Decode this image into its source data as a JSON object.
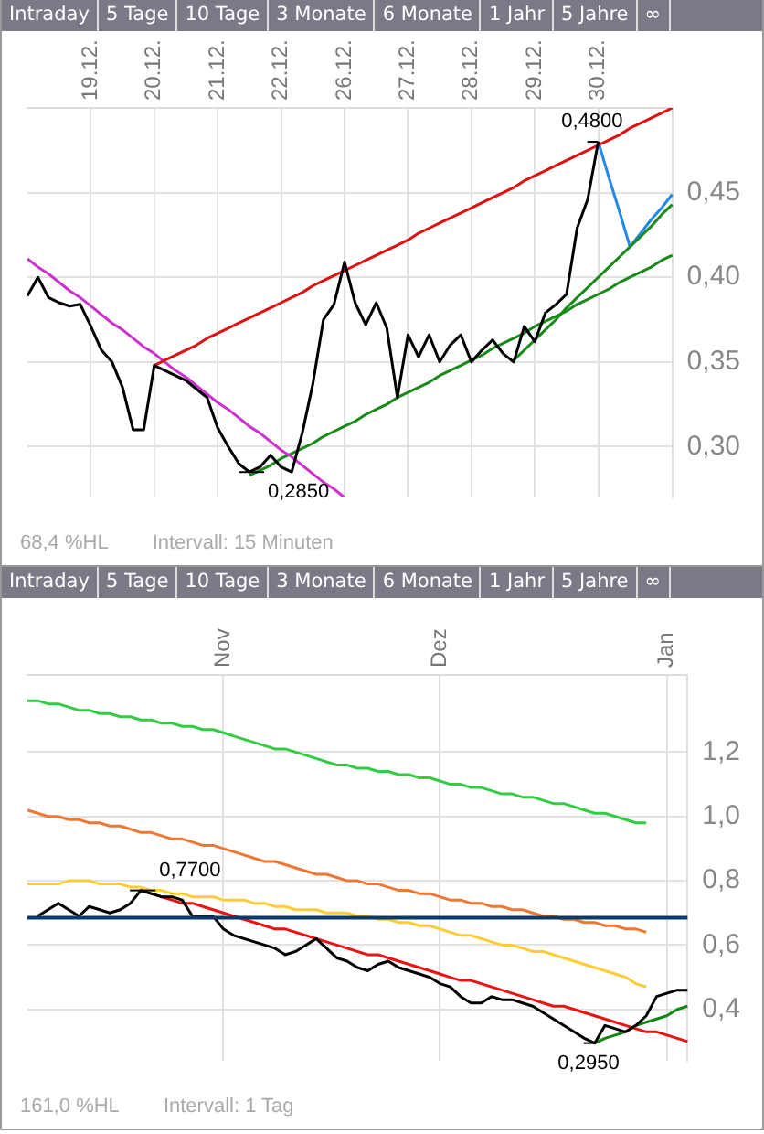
{
  "chart_data": [
    {
      "type": "line",
      "grid": true,
      "legend": false,
      "categories": [
        null,
        null,
        null,
        null,
        null,
        null,
        "19.12.",
        null,
        null,
        null,
        null,
        null,
        "20.12.",
        null,
        null,
        null,
        null,
        null,
        "21.12.",
        null,
        null,
        null,
        null,
        null,
        "22.12.",
        null,
        null,
        null,
        null,
        null,
        "26.12.",
        null,
        null,
        null,
        null,
        null,
        "27.12.",
        null,
        null,
        null,
        null,
        null,
        "28.12.",
        null,
        null,
        null,
        null,
        null,
        "29.12.",
        null,
        null,
        null,
        null,
        null,
        "30.12.",
        null,
        null,
        null,
        null,
        null,
        null,
        null
      ],
      "ylim": [
        0.27,
        0.5
      ],
      "yticks": [
        {
          "value": 0.3,
          "label": "0,30"
        },
        {
          "value": 0.35,
          "label": "0,35"
        },
        {
          "value": 0.4,
          "label": "0,40"
        },
        {
          "value": 0.45,
          "label": "0,45"
        }
      ],
      "series": [
        {
          "color": "#000000",
          "values": [
            0.389,
            0.4,
            0.388,
            0.385,
            0.383,
            0.384,
            0.371,
            0.357,
            0.35,
            0.335,
            0.31,
            0.31,
            0.348,
            0.345,
            0.342,
            0.339,
            0.334,
            0.329,
            0.311,
            0.3,
            0.29,
            0.285,
            0.288,
            0.295,
            0.288,
            0.285,
            0.308,
            0.337,
            0.375,
            0.384,
            0.409,
            0.385,
            0.372,
            0.385,
            0.37,
            0.329,
            0.366,
            0.353,
            0.366,
            0.35,
            0.36,
            0.366,
            0.35,
            0.357,
            0.363,
            0.355,
            0.35,
            0.371,
            0.362,
            0.379,
            0.384,
            0.39,
            0.429,
            0.446,
            0.48,
            null,
            null,
            null,
            null,
            null,
            null,
            null
          ]
        },
        {
          "color": "#dd1111",
          "values": [
            null,
            null,
            null,
            null,
            null,
            null,
            null,
            null,
            null,
            null,
            null,
            null,
            0.348,
            0.351,
            0.354,
            0.357,
            0.36,
            0.364,
            0.367,
            0.37,
            0.373,
            0.376,
            0.379,
            0.382,
            0.385,
            0.388,
            0.391,
            0.395,
            0.398,
            0.401,
            0.404,
            0.407,
            0.41,
            0.413,
            0.416,
            0.419,
            0.422,
            0.426,
            0.429,
            0.432,
            0.435,
            0.438,
            0.441,
            0.444,
            0.447,
            0.45,
            0.453,
            0.457,
            0.46,
            0.463,
            0.466,
            0.469,
            0.472,
            0.475,
            0.478,
            0.481,
            0.484,
            0.488,
            0.491,
            0.494,
            0.497,
            0.5
          ]
        },
        {
          "color": "#cc33cc",
          "values": [
            0.411,
            0.406,
            0.402,
            0.397,
            0.392,
            0.388,
            0.383,
            0.378,
            0.373,
            0.369,
            0.364,
            0.359,
            0.355,
            0.35,
            0.345,
            0.341,
            0.336,
            0.331,
            0.326,
            0.322,
            0.317,
            0.312,
            0.308,
            0.303,
            0.298,
            0.294,
            0.289,
            0.284,
            0.279,
            0.275,
            0.27,
            null,
            null,
            null,
            null,
            null,
            null,
            null,
            null,
            null,
            null,
            null,
            null,
            null,
            null,
            null,
            null,
            null,
            null,
            null,
            null,
            null,
            null,
            null,
            null,
            null,
            null,
            null,
            null,
            null,
            null,
            null
          ]
        },
        {
          "color": "#1a8a1a",
          "values": [
            null,
            null,
            null,
            null,
            null,
            null,
            null,
            null,
            null,
            null,
            null,
            null,
            null,
            null,
            null,
            null,
            null,
            null,
            null,
            null,
            null,
            0.283,
            0.286,
            0.289,
            0.293,
            0.296,
            0.299,
            0.302,
            0.306,
            0.309,
            0.312,
            0.315,
            0.319,
            0.322,
            0.325,
            0.329,
            0.332,
            0.335,
            0.338,
            0.342,
            0.345,
            0.348,
            0.351,
            0.354,
            0.358,
            0.361,
            0.364,
            0.367,
            0.371,
            0.374,
            0.377,
            0.38,
            0.384,
            0.387,
            0.39,
            0.393,
            0.397,
            0.4,
            0.403,
            0.406,
            0.41,
            0.413
          ]
        },
        {
          "color": "#1a8a1a",
          "values": [
            null,
            null,
            null,
            null,
            null,
            null,
            null,
            null,
            null,
            null,
            null,
            null,
            null,
            null,
            null,
            null,
            null,
            null,
            null,
            null,
            null,
            null,
            null,
            null,
            null,
            null,
            null,
            null,
            null,
            null,
            null,
            null,
            null,
            null,
            null,
            null,
            null,
            null,
            null,
            null,
            null,
            null,
            null,
            null,
            null,
            null,
            0.351,
            0.357,
            0.363,
            0.369,
            0.375,
            0.382,
            0.388,
            0.394,
            0.4,
            0.406,
            0.412,
            0.418,
            0.424,
            0.43,
            0.437,
            0.443
          ]
        },
        {
          "color": "#2288ee",
          "values": [
            null,
            null,
            null,
            null,
            null,
            null,
            null,
            null,
            null,
            null,
            null,
            null,
            null,
            null,
            null,
            null,
            null,
            null,
            null,
            null,
            null,
            null,
            null,
            null,
            null,
            null,
            null,
            null,
            null,
            null,
            null,
            null,
            null,
            null,
            null,
            null,
            null,
            null,
            null,
            null,
            null,
            null,
            null,
            null,
            null,
            null,
            null,
            null,
            null,
            null,
            null,
            null,
            null,
            null,
            0.48,
            0.459,
            0.439,
            0.418,
            0.426,
            0.434,
            0.441,
            0.449
          ]
        }
      ],
      "annotations": [
        "Intraday",
        "5 Tage",
        "10 Tage",
        "3 Monate",
        "6 Monate",
        "1 Jahr",
        "5 Jahre",
        "∞",
        {
          "text": "0,4800",
          "y": 0.48
        },
        {
          "text": "0,2850",
          "y": 0.285
        },
        "68,4 %HL",
        "Intervall: 15 Minuten"
      ]
    },
    {
      "type": "line",
      "grid": true,
      "legend": false,
      "categories": [
        null,
        null,
        null,
        null,
        null,
        null,
        null,
        null,
        null,
        null,
        null,
        null,
        null,
        null,
        null,
        null,
        null,
        null,
        null,
        "Nov",
        null,
        null,
        null,
        null,
        null,
        null,
        null,
        null,
        null,
        null,
        null,
        null,
        null,
        null,
        null,
        null,
        null,
        null,
        null,
        null,
        "Dez",
        null,
        null,
        null,
        null,
        null,
        null,
        null,
        null,
        null,
        null,
        null,
        null,
        null,
        null,
        null,
        null,
        null,
        null,
        null,
        null,
        null,
        "Jan",
        null,
        null
      ],
      "ylim": [
        0.24,
        1.44
      ],
      "yticks": [
        {
          "value": 0.4,
          "label": "0,4"
        },
        {
          "value": 0.6,
          "label": "0,6"
        },
        {
          "value": 0.8,
          "label": "0,8"
        },
        {
          "value": 1.0,
          "label": "1,0"
        },
        {
          "value": 1.2,
          "label": "1,2"
        }
      ],
      "ref_lines": [
        {
          "axis": "y",
          "value": 0.685,
          "color": "#0b3a66"
        }
      ],
      "series": [
        {
          "color": "#000000",
          "values": [
            null,
            0.69,
            0.71,
            0.73,
            0.71,
            0.69,
            0.72,
            0.71,
            0.7,
            0.71,
            0.73,
            0.77,
            0.76,
            0.75,
            0.75,
            0.74,
            0.69,
            0.69,
            0.69,
            0.65,
            0.63,
            0.62,
            0.61,
            0.6,
            0.59,
            0.57,
            0.58,
            0.6,
            0.62,
            0.59,
            0.56,
            0.55,
            0.53,
            0.52,
            0.54,
            0.55,
            0.53,
            0.52,
            0.51,
            0.5,
            0.48,
            0.47,
            0.44,
            0.42,
            0.42,
            0.44,
            0.43,
            0.43,
            0.42,
            0.41,
            0.39,
            0.37,
            0.35,
            0.33,
            0.31,
            0.295,
            0.35,
            0.34,
            0.33,
            0.35,
            0.38,
            0.44,
            0.45,
            0.46,
            0.46
          ]
        },
        {
          "color": "#33cc44",
          "values": [
            1.36,
            1.36,
            1.35,
            1.35,
            1.34,
            1.33,
            1.33,
            1.32,
            1.32,
            1.31,
            1.31,
            1.3,
            1.3,
            1.29,
            1.29,
            1.28,
            1.28,
            1.27,
            1.27,
            1.26,
            1.25,
            1.24,
            1.23,
            1.22,
            1.21,
            1.21,
            1.2,
            1.19,
            1.18,
            1.17,
            1.16,
            1.16,
            1.15,
            1.15,
            1.14,
            1.14,
            1.13,
            1.13,
            1.12,
            1.12,
            1.11,
            1.1,
            1.1,
            1.09,
            1.09,
            1.08,
            1.07,
            1.07,
            1.06,
            1.06,
            1.05,
            1.04,
            1.04,
            1.03,
            1.02,
            1.01,
            1.01,
            1.0,
            0.99,
            0.98,
            0.98,
            null,
            null,
            null,
            null
          ]
        },
        {
          "color": "#ee7733",
          "values": [
            1.02,
            1.01,
            1.0,
            1.0,
            0.99,
            0.99,
            0.98,
            0.98,
            0.97,
            0.97,
            0.96,
            0.95,
            0.95,
            0.94,
            0.93,
            0.93,
            0.92,
            0.91,
            0.91,
            0.9,
            0.89,
            0.88,
            0.87,
            0.86,
            0.86,
            0.85,
            0.84,
            0.83,
            0.82,
            0.82,
            0.81,
            0.8,
            0.8,
            0.79,
            0.79,
            0.78,
            0.77,
            0.77,
            0.76,
            0.76,
            0.75,
            0.74,
            0.74,
            0.73,
            0.73,
            0.72,
            0.72,
            0.71,
            0.71,
            0.7,
            0.69,
            0.69,
            0.68,
            0.68,
            0.67,
            0.67,
            0.66,
            0.66,
            0.65,
            0.65,
            0.64,
            null,
            null,
            null,
            null
          ]
        },
        {
          "color": "#ffcc33",
          "values": [
            0.79,
            0.79,
            0.79,
            0.79,
            0.8,
            0.8,
            0.8,
            0.79,
            0.79,
            0.79,
            0.78,
            0.78,
            0.77,
            0.77,
            0.76,
            0.76,
            0.75,
            0.75,
            0.75,
            0.74,
            0.74,
            0.74,
            0.73,
            0.73,
            0.72,
            0.72,
            0.71,
            0.71,
            0.71,
            0.7,
            0.7,
            0.7,
            0.69,
            0.69,
            0.68,
            0.68,
            0.67,
            0.67,
            0.66,
            0.66,
            0.65,
            0.64,
            0.63,
            0.63,
            0.62,
            0.61,
            0.6,
            0.6,
            0.59,
            0.58,
            0.58,
            0.57,
            0.56,
            0.55,
            0.54,
            0.53,
            0.52,
            0.51,
            0.5,
            0.48,
            0.47,
            null,
            null,
            null,
            null
          ]
        },
        {
          "color": "#ee1111",
          "values": [
            null,
            null,
            null,
            null,
            null,
            null,
            null,
            null,
            null,
            null,
            null,
            0.77,
            0.76,
            0.75,
            0.74,
            0.73,
            0.73,
            0.72,
            0.71,
            0.7,
            0.69,
            0.68,
            0.67,
            0.66,
            0.65,
            0.65,
            0.64,
            0.63,
            0.62,
            0.61,
            0.6,
            0.59,
            0.58,
            0.57,
            0.57,
            0.56,
            0.55,
            0.54,
            0.53,
            0.52,
            0.51,
            0.5,
            0.49,
            0.49,
            0.48,
            0.47,
            0.46,
            0.45,
            0.44,
            0.43,
            0.42,
            0.41,
            0.41,
            0.4,
            0.39,
            0.38,
            0.37,
            0.36,
            0.35,
            0.34,
            0.33,
            0.33,
            0.32,
            0.31,
            0.3
          ]
        },
        {
          "color": "#118811",
          "values": [
            null,
            null,
            null,
            null,
            null,
            null,
            null,
            null,
            null,
            null,
            null,
            null,
            null,
            null,
            null,
            null,
            null,
            null,
            null,
            null,
            null,
            null,
            null,
            null,
            null,
            null,
            null,
            null,
            null,
            null,
            null,
            null,
            null,
            null,
            null,
            null,
            null,
            null,
            null,
            null,
            null,
            null,
            null,
            null,
            null,
            null,
            null,
            null,
            null,
            null,
            null,
            null,
            null,
            null,
            null,
            0.295,
            0.31,
            0.32,
            0.33,
            0.35,
            0.36,
            0.37,
            0.38,
            0.4,
            0.41
          ]
        }
      ],
      "annotations": [
        "Intraday",
        "5 Tage",
        "10 Tage",
        "3 Monate",
        "6 Monate",
        "1 Jahr",
        "5 Jahre",
        "∞",
        {
          "text": "0,7700",
          "y": 0.77
        },
        {
          "text": "0,2950",
          "y": 0.295
        },
        "161,0 %HL",
        "Intervall: 1 Tag"
      ]
    }
  ]
}
